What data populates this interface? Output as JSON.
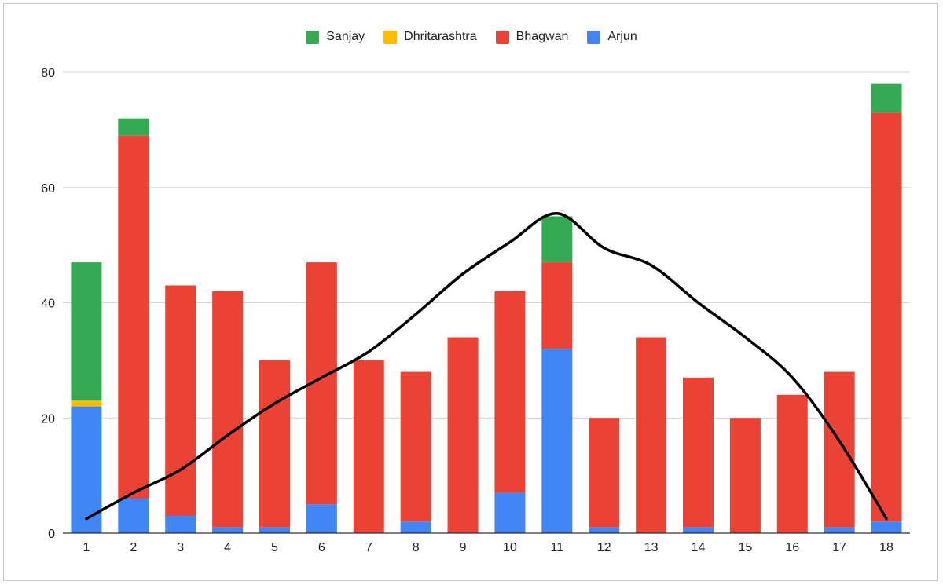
{
  "chart_data": {
    "type": "bar",
    "stacked": true,
    "categories": [
      "1",
      "2",
      "3",
      "4",
      "5",
      "6",
      "7",
      "8",
      "9",
      "10",
      "11",
      "12",
      "13",
      "14",
      "15",
      "16",
      "17",
      "18"
    ],
    "series": [
      {
        "name": "Arjun",
        "color": "#4285f4",
        "values": [
          22,
          6,
          3,
          1,
          1,
          5,
          0,
          2,
          0,
          7,
          32,
          1,
          0,
          1,
          0,
          0,
          1,
          2
        ]
      },
      {
        "name": "Bhagwan",
        "color": "#ea4335",
        "values": [
          0,
          63,
          40,
          41,
          29,
          42,
          30,
          26,
          34,
          35,
          15,
          19,
          34,
          26,
          20,
          24,
          27,
          71
        ]
      },
      {
        "name": "Dhritarashtra",
        "color": "#fbbc04",
        "values": [
          1,
          0,
          0,
          0,
          0,
          0,
          0,
          0,
          0,
          0,
          0,
          0,
          0,
          0,
          0,
          0,
          0,
          0
        ]
      },
      {
        "name": "Sanjay",
        "color": "#34a853",
        "values": [
          24,
          3,
          0,
          0,
          0,
          0,
          0,
          0,
          0,
          0,
          8,
          0,
          0,
          0,
          0,
          0,
          0,
          5
        ]
      }
    ],
    "overlay_curve": {
      "color": "#000000",
      "x": [
        1,
        2,
        3,
        4,
        5,
        6,
        7,
        8,
        9,
        10,
        11,
        12,
        13,
        14,
        15,
        16,
        17,
        18
      ],
      "y": [
        2.5,
        7,
        11,
        17,
        22.5,
        27,
        31.5,
        38,
        45,
        50.5,
        55.5,
        49.5,
        46.5,
        40,
        34,
        27,
        16,
        2.5
      ]
    },
    "legend_order": [
      "Sanjay",
      "Dhritarashtra",
      "Bhagwan",
      "Arjun"
    ],
    "legend_position": "top",
    "ylim": [
      0,
      80
    ],
    "yticks": [
      0,
      20,
      40,
      60,
      80
    ],
    "grid": true,
    "title": "",
    "xlabel": "",
    "ylabel": ""
  }
}
